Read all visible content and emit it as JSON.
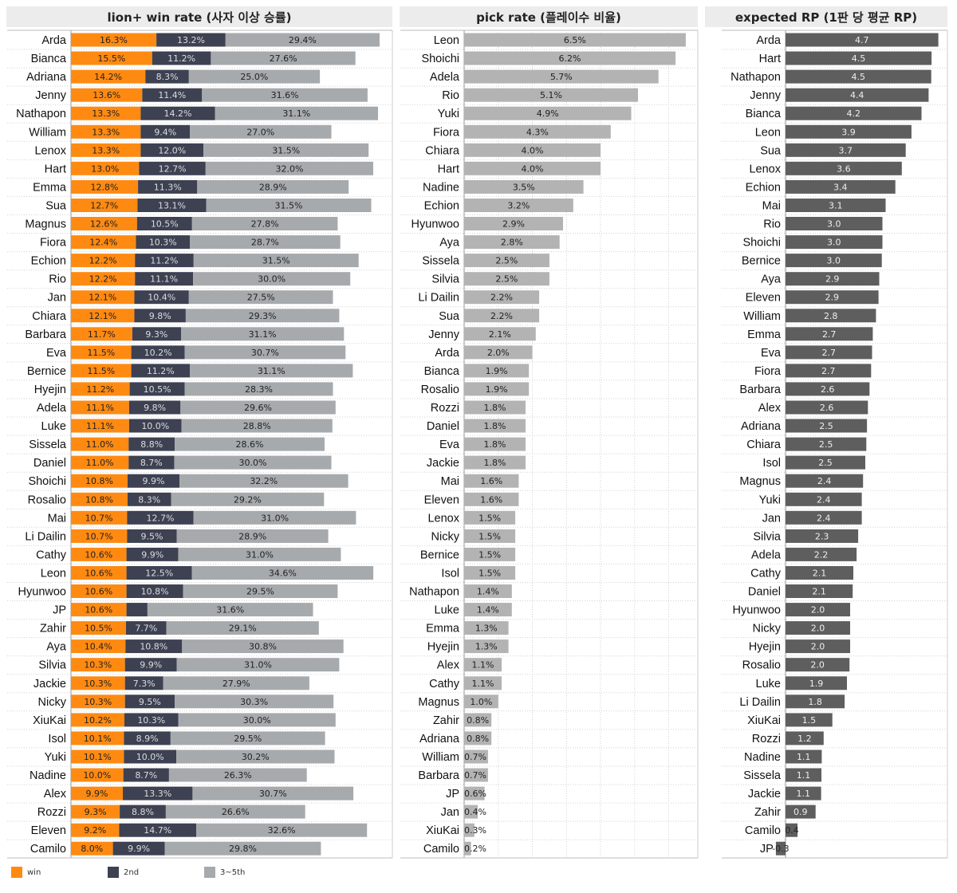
{
  "colors": {
    "win": "#ff8a12",
    "second": "#3d4152",
    "third_fifth": "#a7aaad",
    "pick": "#b3b3b3",
    "rp": "#5e5e5e"
  },
  "legend": [
    {
      "label": "win",
      "color": "#ff8a12"
    },
    {
      "label": "2nd",
      "color": "#3d4152"
    },
    {
      "label": "3~5th",
      "color": "#a7aaad"
    }
  ],
  "chart_data": [
    {
      "type": "bar",
      "stacked": true,
      "orientation": "horizontal",
      "title": "lion+ win rate (사자 이상 승률)",
      "categories": [
        "Arda",
        "Bianca",
        "Adriana",
        "Jenny",
        "Nathapon",
        "William",
        "Lenox",
        "Hart",
        "Emma",
        "Sua",
        "Magnus",
        "Fiora",
        "Echion",
        "Rio",
        "Jan",
        "Chiara",
        "Barbara",
        "Eva",
        "Bernice",
        "Hyejin",
        "Adela",
        "Luke",
        "Sissela",
        "Daniel",
        "Shoichi",
        "Rosalio",
        "Mai",
        "Li Dailin",
        "Cathy",
        "Leon",
        "Hyunwoo",
        "JP",
        "Zahir",
        "Aya",
        "Silvia",
        "Jackie",
        "Nicky",
        "XiuKai",
        "Isol",
        "Yuki",
        "Nadine",
        "Alex",
        "Rozzi",
        "Eleven",
        "Camilo"
      ],
      "series": [
        {
          "name": "win",
          "values": [
            16.3,
            15.5,
            14.2,
            13.6,
            13.3,
            13.3,
            13.3,
            13.0,
            12.8,
            12.7,
            12.6,
            12.4,
            12.2,
            12.2,
            12.1,
            12.1,
            11.7,
            11.5,
            11.5,
            11.2,
            11.1,
            11.1,
            11.0,
            11.0,
            10.8,
            10.8,
            10.7,
            10.7,
            10.6,
            10.6,
            10.6,
            10.6,
            10.5,
            10.4,
            10.3,
            10.3,
            10.3,
            10.2,
            10.1,
            10.1,
            10.0,
            9.9,
            9.3,
            9.2,
            8.0
          ]
        },
        {
          "name": "2nd",
          "values": [
            13.2,
            11.2,
            8.3,
            11.4,
            14.2,
            9.4,
            12.0,
            12.7,
            11.3,
            13.1,
            10.5,
            10.3,
            11.2,
            11.1,
            10.4,
            9.8,
            9.3,
            10.2,
            11.2,
            10.5,
            9.8,
            10.0,
            8.8,
            8.7,
            9.9,
            8.3,
            12.7,
            9.5,
            9.9,
            12.5,
            10.8,
            null,
            7.7,
            10.8,
            9.9,
            7.3,
            9.5,
            10.3,
            8.9,
            10.0,
            8.7,
            13.3,
            8.8,
            14.7,
            9.9
          ]
        },
        {
          "name": "3~5th",
          "values": [
            29.4,
            27.6,
            25.0,
            31.6,
            31.1,
            27.0,
            31.5,
            32.0,
            28.9,
            31.5,
            27.8,
            28.7,
            31.5,
            30.0,
            27.5,
            29.3,
            31.1,
            30.7,
            31.1,
            28.3,
            29.6,
            28.8,
            28.6,
            30.0,
            32.2,
            29.2,
            31.0,
            28.9,
            31.0,
            34.6,
            29.5,
            31.6,
            29.1,
            30.8,
            31.0,
            27.9,
            30.3,
            30.0,
            29.5,
            30.2,
            26.3,
            30.7,
            26.6,
            32.6,
            29.8
          ]
        }
      ],
      "jp_second_unlabeled": 4.0,
      "xlim": [
        0,
        60
      ]
    },
    {
      "type": "bar",
      "orientation": "horizontal",
      "title": "pick rate (플레이수 비율)",
      "categories": [
        "Leon",
        "Shoichi",
        "Adela",
        "Rio",
        "Yuki",
        "Fiora",
        "Chiara",
        "Hart",
        "Nadine",
        "Echion",
        "Hyunwoo",
        "Aya",
        "Sissela",
        "Silvia",
        "Li Dailin",
        "Sua",
        "Jenny",
        "Arda",
        "Bianca",
        "Rosalio",
        "Rozzi",
        "Daniel",
        "Eva",
        "Jackie",
        "Mai",
        "Eleven",
        "Lenox",
        "Nicky",
        "Bernice",
        "Isol",
        "Nathapon",
        "Luke",
        "Emma",
        "Hyejin",
        "Alex",
        "Cathy",
        "Magnus",
        "Zahir",
        "Adriana",
        "William",
        "Barbara",
        "JP",
        "Jan",
        "XiuKai",
        "Camilo"
      ],
      "values": [
        6.5,
        6.2,
        5.7,
        5.1,
        4.9,
        4.3,
        4.0,
        4.0,
        3.5,
        3.2,
        2.9,
        2.8,
        2.5,
        2.5,
        2.2,
        2.2,
        2.1,
        2.0,
        1.9,
        1.9,
        1.8,
        1.8,
        1.8,
        1.8,
        1.6,
        1.6,
        1.5,
        1.5,
        1.5,
        1.5,
        1.4,
        1.4,
        1.3,
        1.3,
        1.1,
        1.1,
        1.0,
        0.8,
        0.8,
        0.7,
        0.7,
        0.6,
        0.4,
        0.3,
        0.2
      ],
      "labels": [
        "6.5%",
        "6.2%",
        "5.7%",
        "5.1%",
        "4.9%",
        "4.3%",
        "4.0%",
        "4.0%",
        "3.5%",
        "3.2%",
        "2.9%",
        "2.8%",
        "2.5%",
        "2.5%",
        "2.2%",
        "2.2%",
        "2.1%",
        "2.0%",
        "1.9%",
        "1.9%",
        "1.8%",
        "1.8%",
        "1.8%",
        "1.8%",
        "1.6%",
        "1.6%",
        "1.5%",
        "1.5%",
        "1.5%",
        "1.5%",
        "1.4%",
        "1.4%",
        "1.3%",
        "1.3%",
        "1.1%",
        "1.1%",
        "1.0%",
        "0.8%",
        "0.8%",
        "0.7%",
        "0.7%",
        "0.6%",
        "0.4%",
        "0.3%",
        "0.2%"
      ],
      "xlim": [
        0,
        7
      ]
    },
    {
      "type": "bar",
      "orientation": "horizontal",
      "title": "expected RP (1판 당 평균 RP)",
      "categories": [
        "Arda",
        "Hart",
        "Nathapon",
        "Jenny",
        "Bianca",
        "Leon",
        "Sua",
        "Lenox",
        "Echion",
        "Mai",
        "Rio",
        "Shoichi",
        "Bernice",
        "Aya",
        "Eleven",
        "William",
        "Emma",
        "Eva",
        "Fiora",
        "Barbara",
        "Alex",
        "Adriana",
        "Chiara",
        "Isol",
        "Magnus",
        "Yuki",
        "Jan",
        "Silvia",
        "Adela",
        "Cathy",
        "Daniel",
        "Hyunwoo",
        "Nicky",
        "Hyejin",
        "Rosalio",
        "Luke",
        "Li Dailin",
        "XiuKai",
        "Rozzi",
        "Nadine",
        "Sissela",
        "Jackie",
        "Zahir",
        "Camilo",
        "JP"
      ],
      "values": [
        4.73,
        4.52,
        4.51,
        4.43,
        4.21,
        3.9,
        3.72,
        3.6,
        3.4,
        3.1,
        3.0,
        3.0,
        2.98,
        2.9,
        2.88,
        2.8,
        2.7,
        2.68,
        2.65,
        2.6,
        2.55,
        2.52,
        2.5,
        2.47,
        2.4,
        2.36,
        2.36,
        2.25,
        2.2,
        2.1,
        2.08,
        2.0,
        2.0,
        2.0,
        1.98,
        1.9,
        1.83,
        1.45,
        1.18,
        1.12,
        1.11,
        1.1,
        0.93,
        0.37,
        -0.3
      ],
      "labels": [
        "4.7",
        "4.5",
        "4.5",
        "4.4",
        "4.2",
        "3.9",
        "3.7",
        "3.6",
        "3.4",
        "3.1",
        "3.0",
        "3.0",
        "3.0",
        "2.9",
        "2.9",
        "2.8",
        "2.7",
        "2.7",
        "2.7",
        "2.6",
        "2.6",
        "2.5",
        "2.5",
        "2.5",
        "2.4",
        "2.4",
        "2.4",
        "2.3",
        "2.2",
        "2.1",
        "2.1",
        "2.0",
        "2.0",
        "2.0",
        "2.0",
        "1.9",
        "1.8",
        "1.5",
        "1.2",
        "1.1",
        "1.1",
        "1.1",
        "0.9",
        "0.4",
        "-0.3"
      ],
      "xlim": [
        -0.3,
        5.0
      ]
    }
  ]
}
